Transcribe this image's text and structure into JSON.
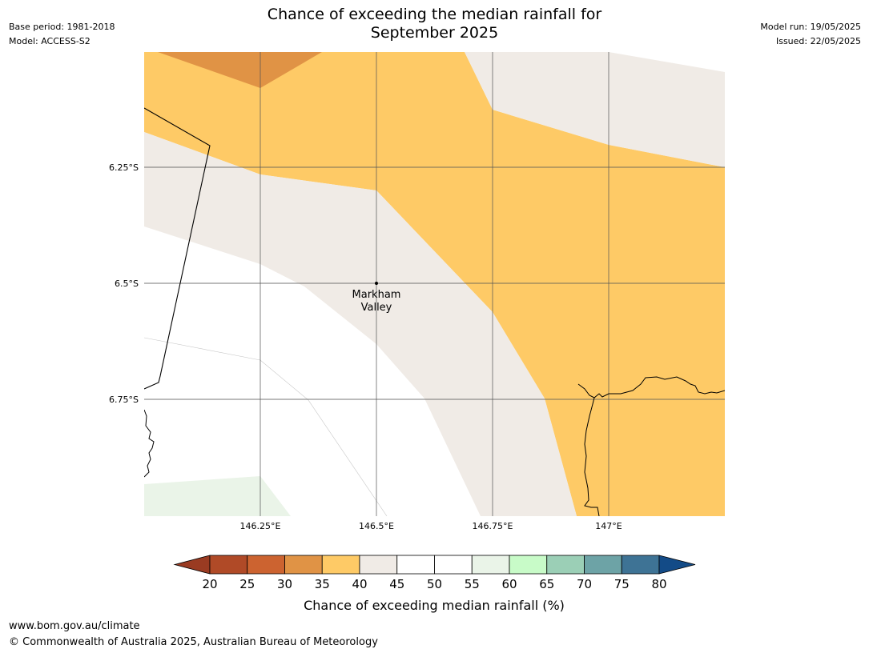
{
  "title_line1": "Chance of exceeding the median rainfall for",
  "title_line2": "September 2025",
  "base_period": "Base period: 1981-2018",
  "model": "Model: ACCESS-S2",
  "model_run": "Model run: 19/05/2025",
  "issued": "Issued: 22/05/2025",
  "place_label_line1": "Markham",
  "place_label_line2": "Valley",
  "lat_labels": [
    "6.25°S",
    "6.5°S",
    "6.75°S"
  ],
  "lon_labels": [
    "146.25°E",
    "146.5°E",
    "146.75°E",
    "147°E"
  ],
  "colorbar": {
    "label": "Chance of exceeding median rainfall (%)",
    "ticks": [
      "20",
      "25",
      "30",
      "35",
      "40",
      "45",
      "50",
      "55",
      "60",
      "65",
      "70",
      "75",
      "80"
    ],
    "under_color": "#9a3b22",
    "over_color": "#134b87",
    "bins": [
      {
        "range": "20-25",
        "color": "#b04a27"
      },
      {
        "range": "25-30",
        "color": "#cc6330"
      },
      {
        "range": "30-35",
        "color": "#e09345"
      },
      {
        "range": "35-40",
        "color": "#feca66"
      },
      {
        "range": "40-45",
        "color": "#f0ebe6"
      },
      {
        "range": "45-50",
        "color": "#ffffff"
      },
      {
        "range": "50-55",
        "color": "#ffffff"
      },
      {
        "range": "55-60",
        "color": "#eaf4e8"
      },
      {
        "range": "60-65",
        "color": "#c8fbc8"
      },
      {
        "range": "65-70",
        "color": "#9bcfb6"
      },
      {
        "range": "70-75",
        "color": "#6da3a6"
      },
      {
        "range": "75-80",
        "color": "#3e7395"
      }
    ]
  },
  "footer_url": "www.bom.gov.au/climate",
  "footer_copyright": "© Commonwealth of Australia 2025, Australian Bureau of Meteorology"
}
